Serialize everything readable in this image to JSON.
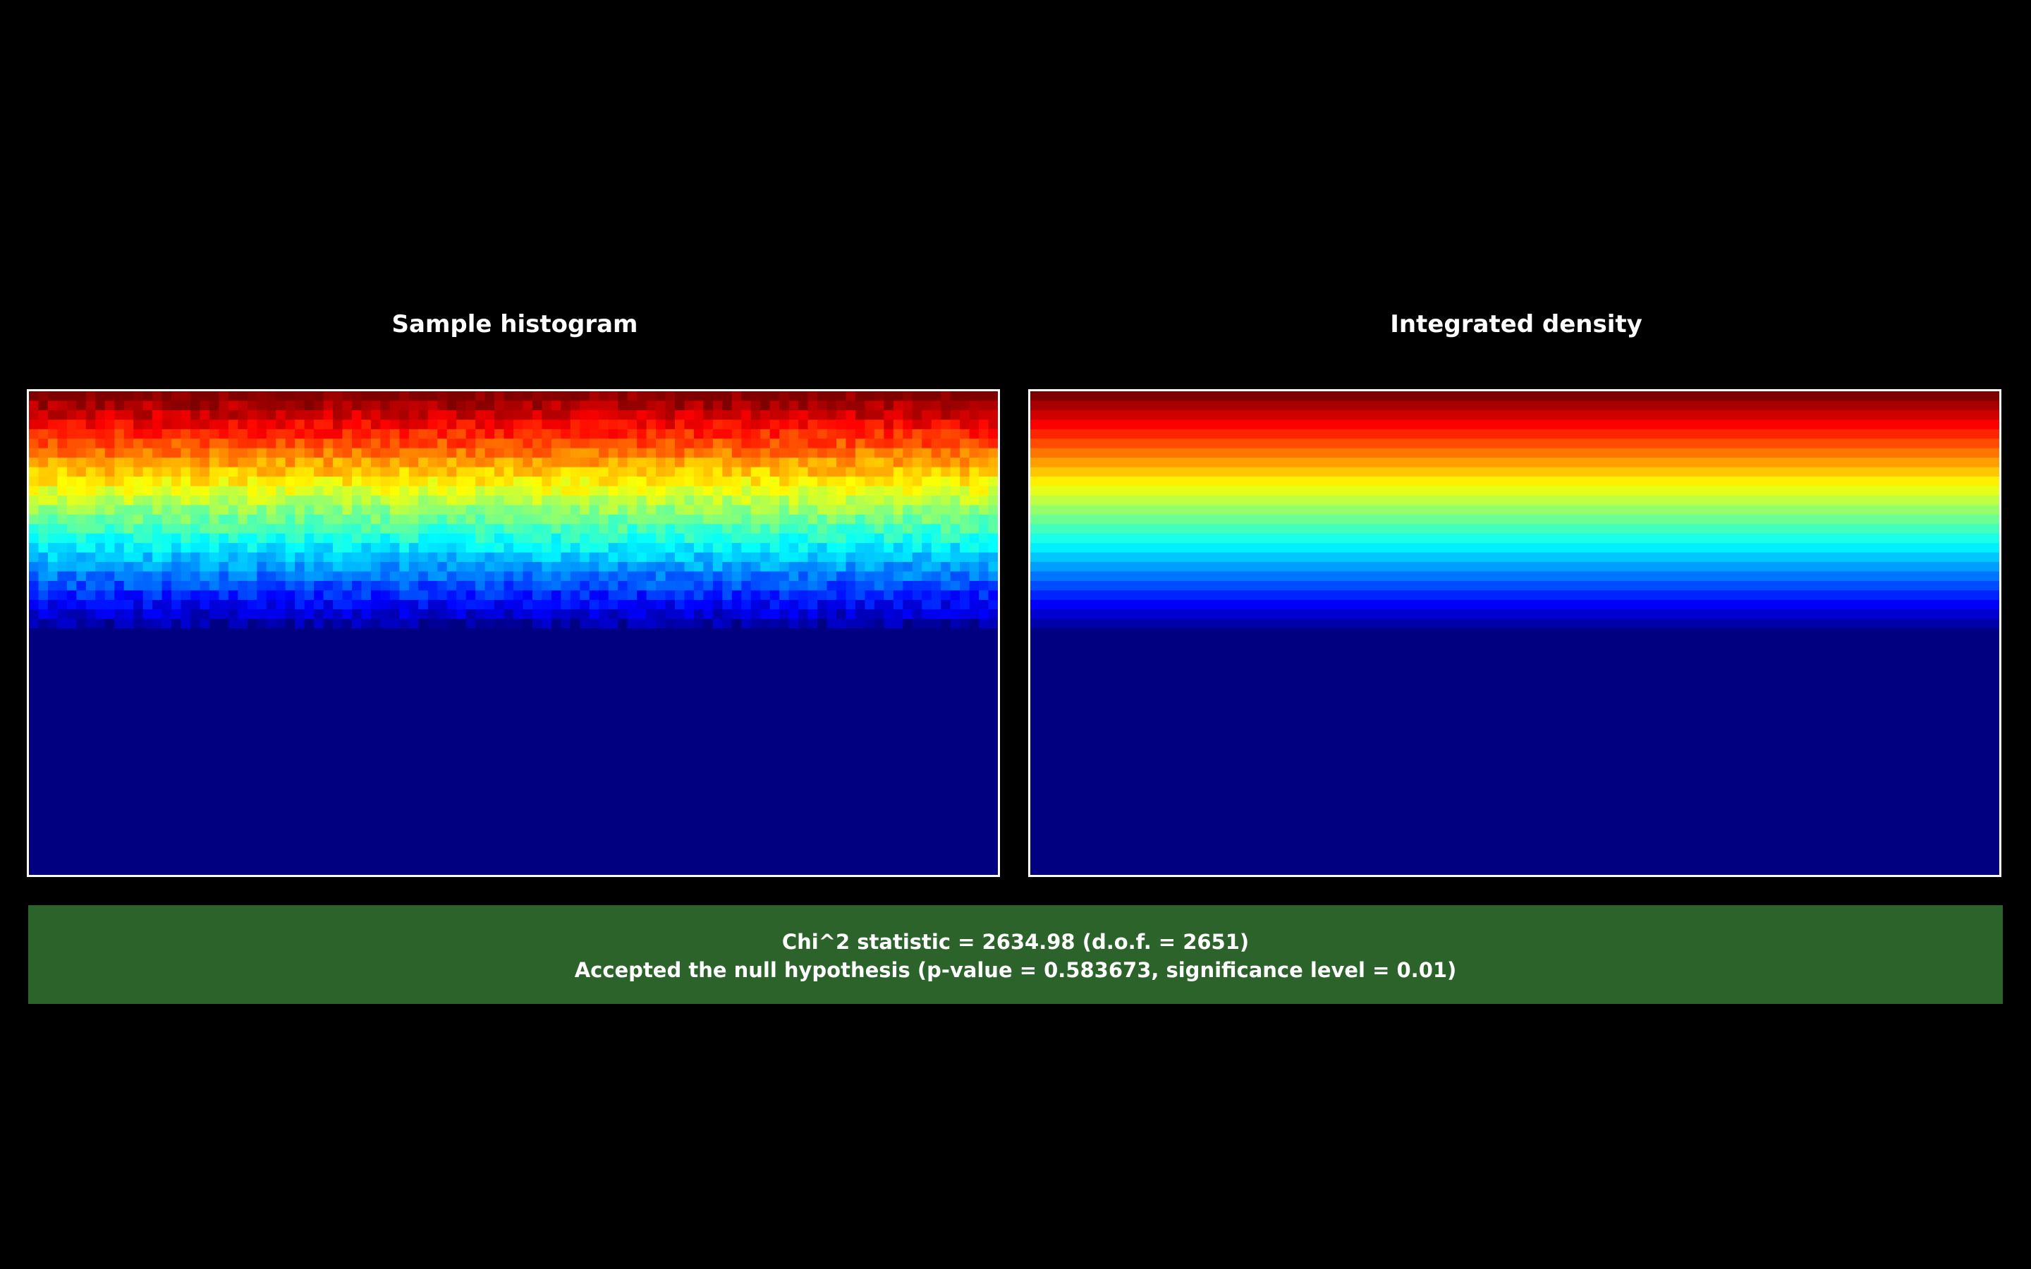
{
  "chart_data": [
    {
      "type": "heatmap",
      "title": "Sample histogram",
      "colormap": "jet",
      "grid": false,
      "legend": "none",
      "row_profile": [
        1.0,
        0.96,
        0.92,
        0.88,
        0.84,
        0.8,
        0.76,
        0.72,
        0.68,
        0.64,
        0.6,
        0.56,
        0.52,
        0.48,
        0.44,
        0.4,
        0.36,
        0.32,
        0.28,
        0.24,
        0.2,
        0.16,
        0.12,
        0.08,
        0.04,
        0.0,
        0.0,
        0.0,
        0.0,
        0.0,
        0.0,
        0.0,
        0.0,
        0.0,
        0.0,
        0.0,
        0.0,
        0.0,
        0.0,
        0.0,
        0.0,
        0.0,
        0.0,
        0.0,
        0.0,
        0.0,
        0.0,
        0.0,
        0.0,
        0.0,
        0.0
      ],
      "columns": 102,
      "noisy": true
    },
    {
      "type": "heatmap",
      "title": "Integrated density",
      "colormap": "jet",
      "grid": false,
      "legend": "none",
      "row_profile": [
        1.0,
        0.96,
        0.92,
        0.88,
        0.84,
        0.8,
        0.76,
        0.72,
        0.68,
        0.64,
        0.6,
        0.56,
        0.52,
        0.48,
        0.44,
        0.4,
        0.36,
        0.32,
        0.28,
        0.24,
        0.2,
        0.16,
        0.12,
        0.08,
        0.04,
        0.0,
        0.0,
        0.0,
        0.0,
        0.0,
        0.0,
        0.0,
        0.0,
        0.0,
        0.0,
        0.0,
        0.0,
        0.0,
        0.0,
        0.0,
        0.0,
        0.0,
        0.0,
        0.0,
        0.0,
        0.0,
        0.0,
        0.0,
        0.0,
        0.0,
        0.0
      ],
      "columns": 1,
      "noisy": false
    }
  ],
  "result": {
    "line1": "Chi^2 statistic = 2634.98 (d.o.f. = 2651)",
    "line2": "Accepted the null hypothesis (p-value = 0.583673, significance level = 0.01)",
    "status_color": "#2b632b"
  }
}
